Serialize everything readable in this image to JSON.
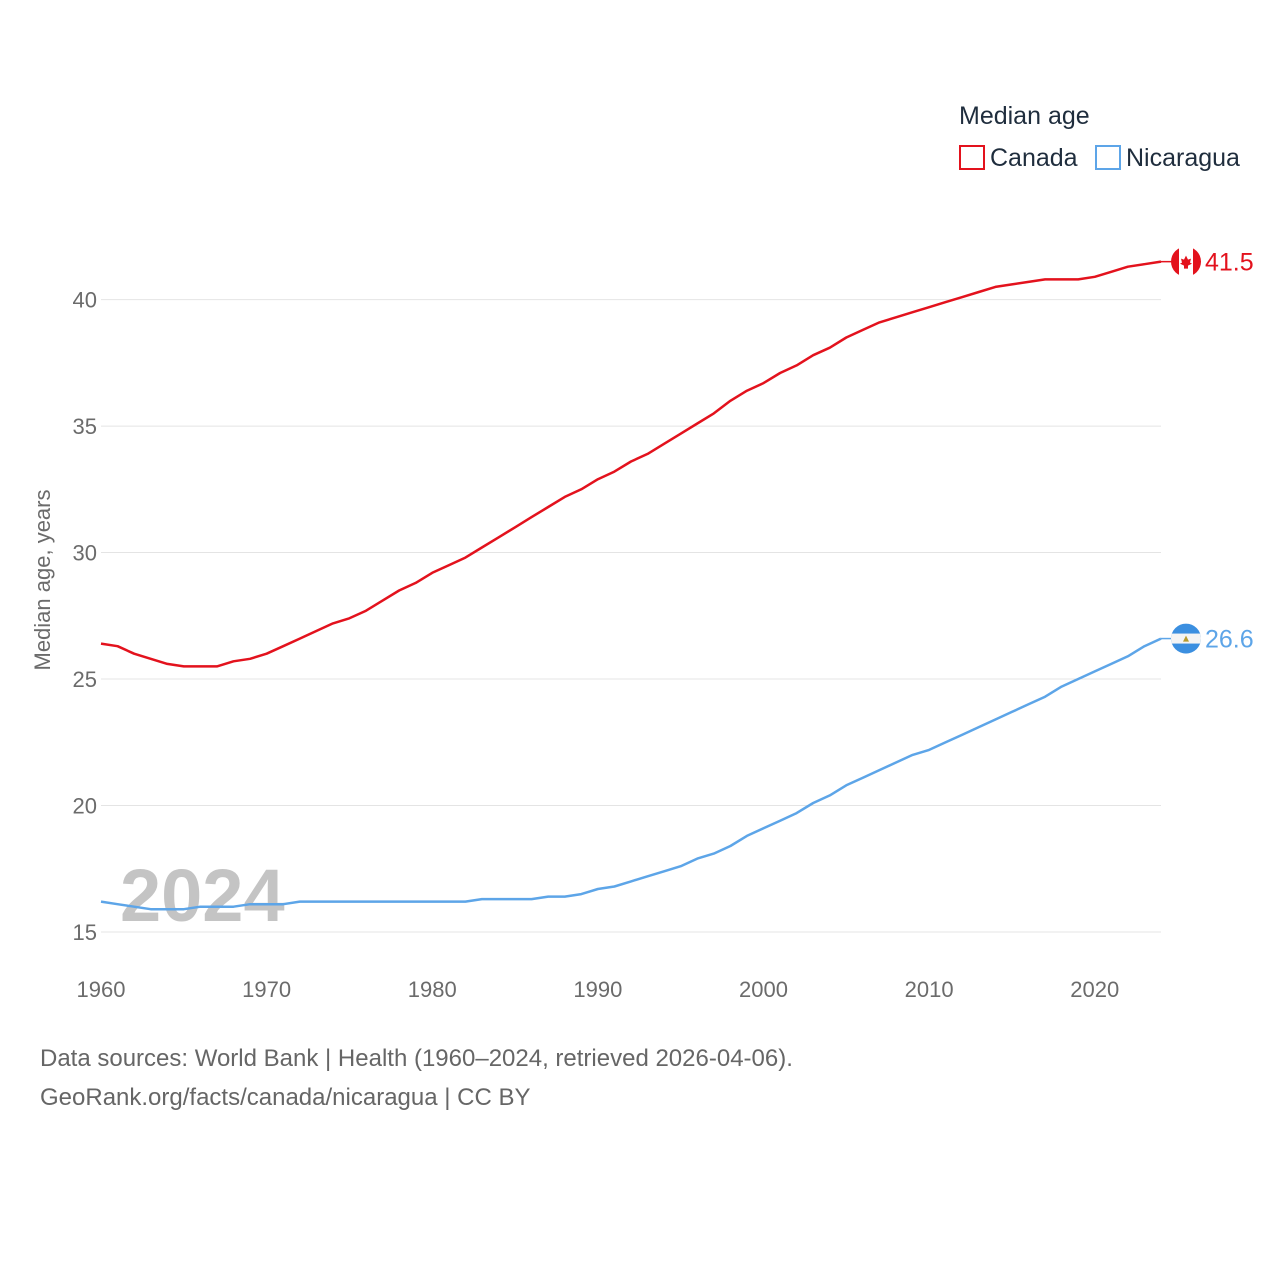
{
  "chart_data": {
    "type": "line",
    "legend_title": "Median age",
    "ylabel": "Median age, years",
    "xlabel": "",
    "current_year": "2024",
    "ylim": [
      15,
      42
    ],
    "xlim": [
      1960,
      2024
    ],
    "y_ticks": [
      15,
      20,
      25,
      30,
      35,
      40
    ],
    "x_ticks": [
      1960,
      1970,
      1980,
      1990,
      2000,
      2010,
      2020
    ],
    "legend_position": "top-right",
    "series": [
      {
        "name": "Canada",
        "color": "#e3121d",
        "flag_icon": "canada-flag-icon",
        "end_label": "41.5",
        "points": [
          [
            1960,
            26.4
          ],
          [
            1961,
            26.3
          ],
          [
            1962,
            26.0
          ],
          [
            1963,
            25.8
          ],
          [
            1964,
            25.6
          ],
          [
            1965,
            25.5
          ],
          [
            1966,
            25.5
          ],
          [
            1967,
            25.5
          ],
          [
            1968,
            25.7
          ],
          [
            1969,
            25.8
          ],
          [
            1970,
            26.0
          ],
          [
            1971,
            26.3
          ],
          [
            1972,
            26.6
          ],
          [
            1973,
            26.9
          ],
          [
            1974,
            27.2
          ],
          [
            1975,
            27.4
          ],
          [
            1976,
            27.7
          ],
          [
            1977,
            28.1
          ],
          [
            1978,
            28.5
          ],
          [
            1979,
            28.8
          ],
          [
            1980,
            29.2
          ],
          [
            1981,
            29.5
          ],
          [
            1982,
            29.8
          ],
          [
            1983,
            30.2
          ],
          [
            1984,
            30.6
          ],
          [
            1985,
            31.0
          ],
          [
            1986,
            31.4
          ],
          [
            1987,
            31.8
          ],
          [
            1988,
            32.2
          ],
          [
            1989,
            32.5
          ],
          [
            1990,
            32.9
          ],
          [
            1991,
            33.2
          ],
          [
            1992,
            33.6
          ],
          [
            1993,
            33.9
          ],
          [
            1994,
            34.3
          ],
          [
            1995,
            34.7
          ],
          [
            1996,
            35.1
          ],
          [
            1997,
            35.5
          ],
          [
            1998,
            36.0
          ],
          [
            1999,
            36.4
          ],
          [
            2000,
            36.7
          ],
          [
            2001,
            37.1
          ],
          [
            2002,
            37.4
          ],
          [
            2003,
            37.8
          ],
          [
            2004,
            38.1
          ],
          [
            2005,
            38.5
          ],
          [
            2006,
            38.8
          ],
          [
            2007,
            39.1
          ],
          [
            2008,
            39.3
          ],
          [
            2009,
            39.5
          ],
          [
            2010,
            39.7
          ],
          [
            2011,
            39.9
          ],
          [
            2012,
            40.1
          ],
          [
            2013,
            40.3
          ],
          [
            2014,
            40.5
          ],
          [
            2015,
            40.6
          ],
          [
            2016,
            40.7
          ],
          [
            2017,
            40.8
          ],
          [
            2018,
            40.8
          ],
          [
            2019,
            40.8
          ],
          [
            2020,
            40.9
          ],
          [
            2021,
            41.1
          ],
          [
            2022,
            41.3
          ],
          [
            2023,
            41.4
          ],
          [
            2024,
            41.5
          ]
        ]
      },
      {
        "name": "Nicaragua",
        "color": "#5da5e8",
        "flag_icon": "nicaragua-flag-icon",
        "end_label": "26.6",
        "points": [
          [
            1960,
            16.2
          ],
          [
            1961,
            16.1
          ],
          [
            1962,
            16.0
          ],
          [
            1963,
            15.9
          ],
          [
            1964,
            15.9
          ],
          [
            1965,
            15.9
          ],
          [
            1966,
            16.0
          ],
          [
            1967,
            16.0
          ],
          [
            1968,
            16.0
          ],
          [
            1969,
            16.1
          ],
          [
            1970,
            16.1
          ],
          [
            1971,
            16.1
          ],
          [
            1972,
            16.2
          ],
          [
            1973,
            16.2
          ],
          [
            1974,
            16.2
          ],
          [
            1975,
            16.2
          ],
          [
            1976,
            16.2
          ],
          [
            1977,
            16.2
          ],
          [
            1978,
            16.2
          ],
          [
            1979,
            16.2
          ],
          [
            1980,
            16.2
          ],
          [
            1981,
            16.2
          ],
          [
            1982,
            16.2
          ],
          [
            1983,
            16.3
          ],
          [
            1984,
            16.3
          ],
          [
            1985,
            16.3
          ],
          [
            1986,
            16.3
          ],
          [
            1987,
            16.4
          ],
          [
            1988,
            16.4
          ],
          [
            1989,
            16.5
          ],
          [
            1990,
            16.7
          ],
          [
            1991,
            16.8
          ],
          [
            1992,
            17.0
          ],
          [
            1993,
            17.2
          ],
          [
            1994,
            17.4
          ],
          [
            1995,
            17.6
          ],
          [
            1996,
            17.9
          ],
          [
            1997,
            18.1
          ],
          [
            1998,
            18.4
          ],
          [
            1999,
            18.8
          ],
          [
            2000,
            19.1
          ],
          [
            2001,
            19.4
          ],
          [
            2002,
            19.7
          ],
          [
            2003,
            20.1
          ],
          [
            2004,
            20.4
          ],
          [
            2005,
            20.8
          ],
          [
            2006,
            21.1
          ],
          [
            2007,
            21.4
          ],
          [
            2008,
            21.7
          ],
          [
            2009,
            22.0
          ],
          [
            2010,
            22.2
          ],
          [
            2011,
            22.5
          ],
          [
            2012,
            22.8
          ],
          [
            2013,
            23.1
          ],
          [
            2014,
            23.4
          ],
          [
            2015,
            23.7
          ],
          [
            2016,
            24.0
          ],
          [
            2017,
            24.3
          ],
          [
            2018,
            24.7
          ],
          [
            2019,
            25.0
          ],
          [
            2020,
            25.3
          ],
          [
            2021,
            25.6
          ],
          [
            2022,
            25.9
          ],
          [
            2023,
            26.3
          ],
          [
            2024,
            26.6
          ]
        ]
      }
    ]
  },
  "footer": {
    "line1": "Data sources: World Bank | Health (1960–2024, retrieved 2026-04-06).",
    "line2": "GeoRank.org/facts/canada/nicaragua | CC BY"
  }
}
